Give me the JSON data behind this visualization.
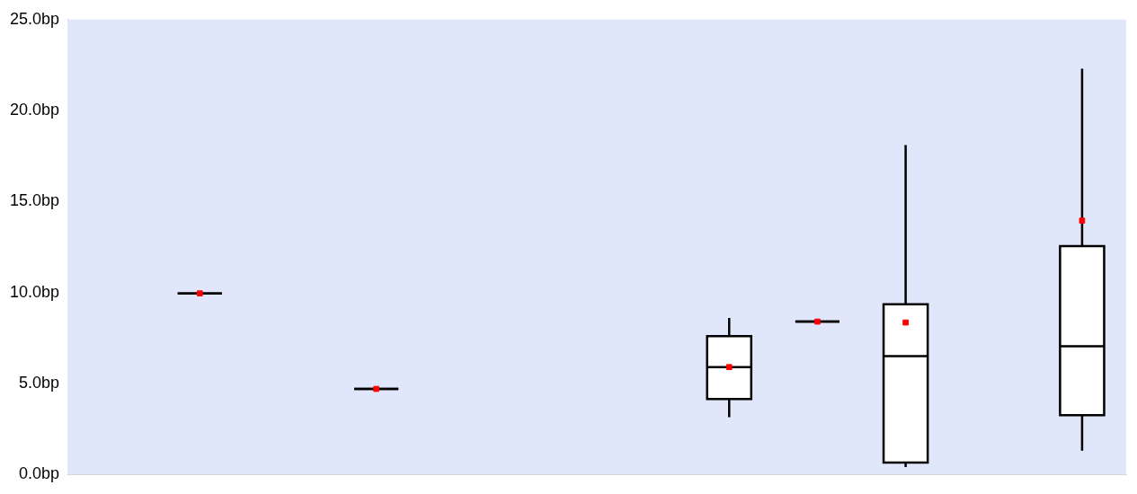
{
  "chart_data": {
    "type": "box",
    "categories": [
      null,
      null,
      null,
      null,
      null,
      null,
      null,
      null,
      null,
      null,
      null,
      null
    ],
    "boxes": [
      null,
      {
        "low": 9.95,
        "q1": 9.95,
        "median": 9.95,
        "q3": 9.95,
        "high": 9.95,
        "mean": 9.95
      },
      null,
      {
        "low": 4.7,
        "q1": 4.7,
        "median": 4.7,
        "q3": 4.7,
        "high": 4.7,
        "mean": 4.7
      },
      null,
      null,
      null,
      {
        "low": 3.15,
        "q1": 4.15,
        "median": 5.9,
        "q3": 7.6,
        "high": 8.6,
        "mean": 5.9
      },
      {
        "low": 8.4,
        "q1": 8.4,
        "median": 8.4,
        "q3": 8.4,
        "high": 8.4,
        "mean": 8.4
      },
      {
        "low": 0.4,
        "q1": 0.65,
        "median": 6.5,
        "q3": 9.35,
        "high": 18.1,
        "mean": 8.35
      },
      null,
      {
        "low": 1.3,
        "q1": 3.25,
        "median": 7.05,
        "q3": 12.55,
        "high": 22.3,
        "mean": 13.95
      }
    ],
    "ylim": [
      0,
      25
    ],
    "yticks": [
      {
        "value": 0,
        "label": "0.0bp"
      },
      {
        "value": 5,
        "label": "5.0bp"
      },
      {
        "value": 10,
        "label": "10.0bp"
      },
      {
        "value": 15,
        "label": "15.0bp"
      },
      {
        "value": 20,
        "label": "20.0bp"
      },
      {
        "value": 25,
        "label": "25.0bp"
      }
    ],
    "grid": false,
    "legend": false,
    "tick_labels": "y"
  }
}
